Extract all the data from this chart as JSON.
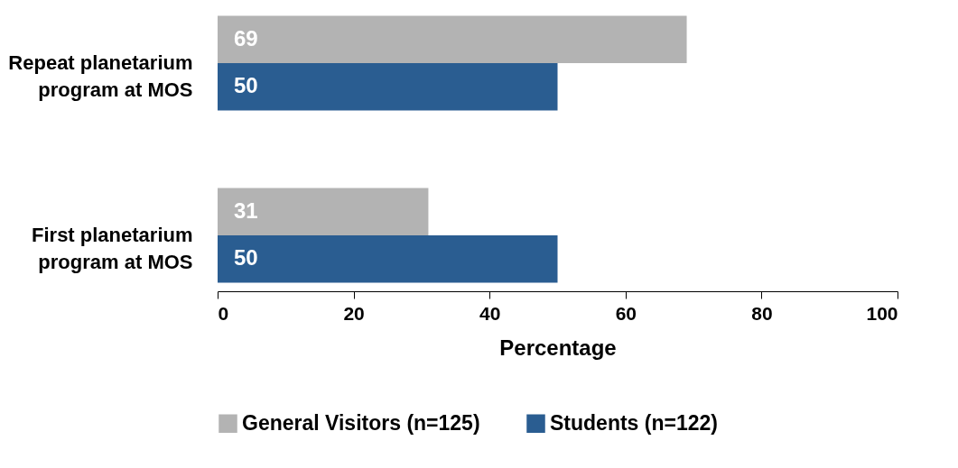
{
  "chart_data": {
    "type": "bar",
    "orientation": "horizontal",
    "categories": [
      "Repeat planetarium program at MOS",
      "First planetarium program at MOS"
    ],
    "series": [
      {
        "name": "General Visitors (n=125)",
        "color": "#b3b3b3",
        "values": [
          69,
          31
        ]
      },
      {
        "name": "Students (n=122)",
        "color": "#2a5d91",
        "values": [
          50,
          50
        ]
      }
    ],
    "xlabel": "Percentage",
    "xlim": [
      0,
      100
    ],
    "xticks": [
      0,
      20,
      40,
      60,
      80,
      100
    ],
    "data_labels": true,
    "legend": "bottom",
    "grid": false
  }
}
